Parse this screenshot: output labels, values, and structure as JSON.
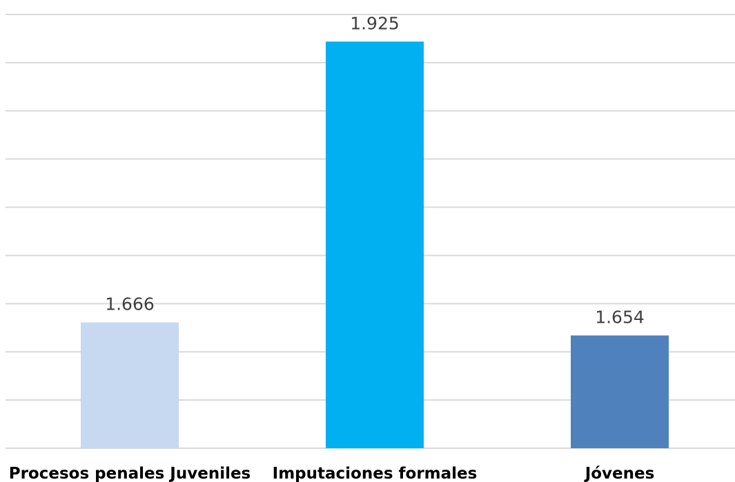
{
  "chart_data": {
    "type": "bar",
    "categories": [
      "Procesos penales Juveniles",
      "Imputaciones formales",
      "Jóvenes"
    ],
    "values": [
      1.666,
      1.925,
      1.654
    ],
    "value_labels": [
      "1.666",
      "1.925",
      "1.654"
    ],
    "bar_colors": [
      "#c6d9f0",
      "#00b0f0",
      "#4f81bd"
    ],
    "title": "",
    "xlabel": "",
    "ylabel": "",
    "ylim": [
      1.55,
      1.95
    ],
    "grid": true,
    "gridline_color": "#d9d9d9",
    "legend": "none"
  }
}
